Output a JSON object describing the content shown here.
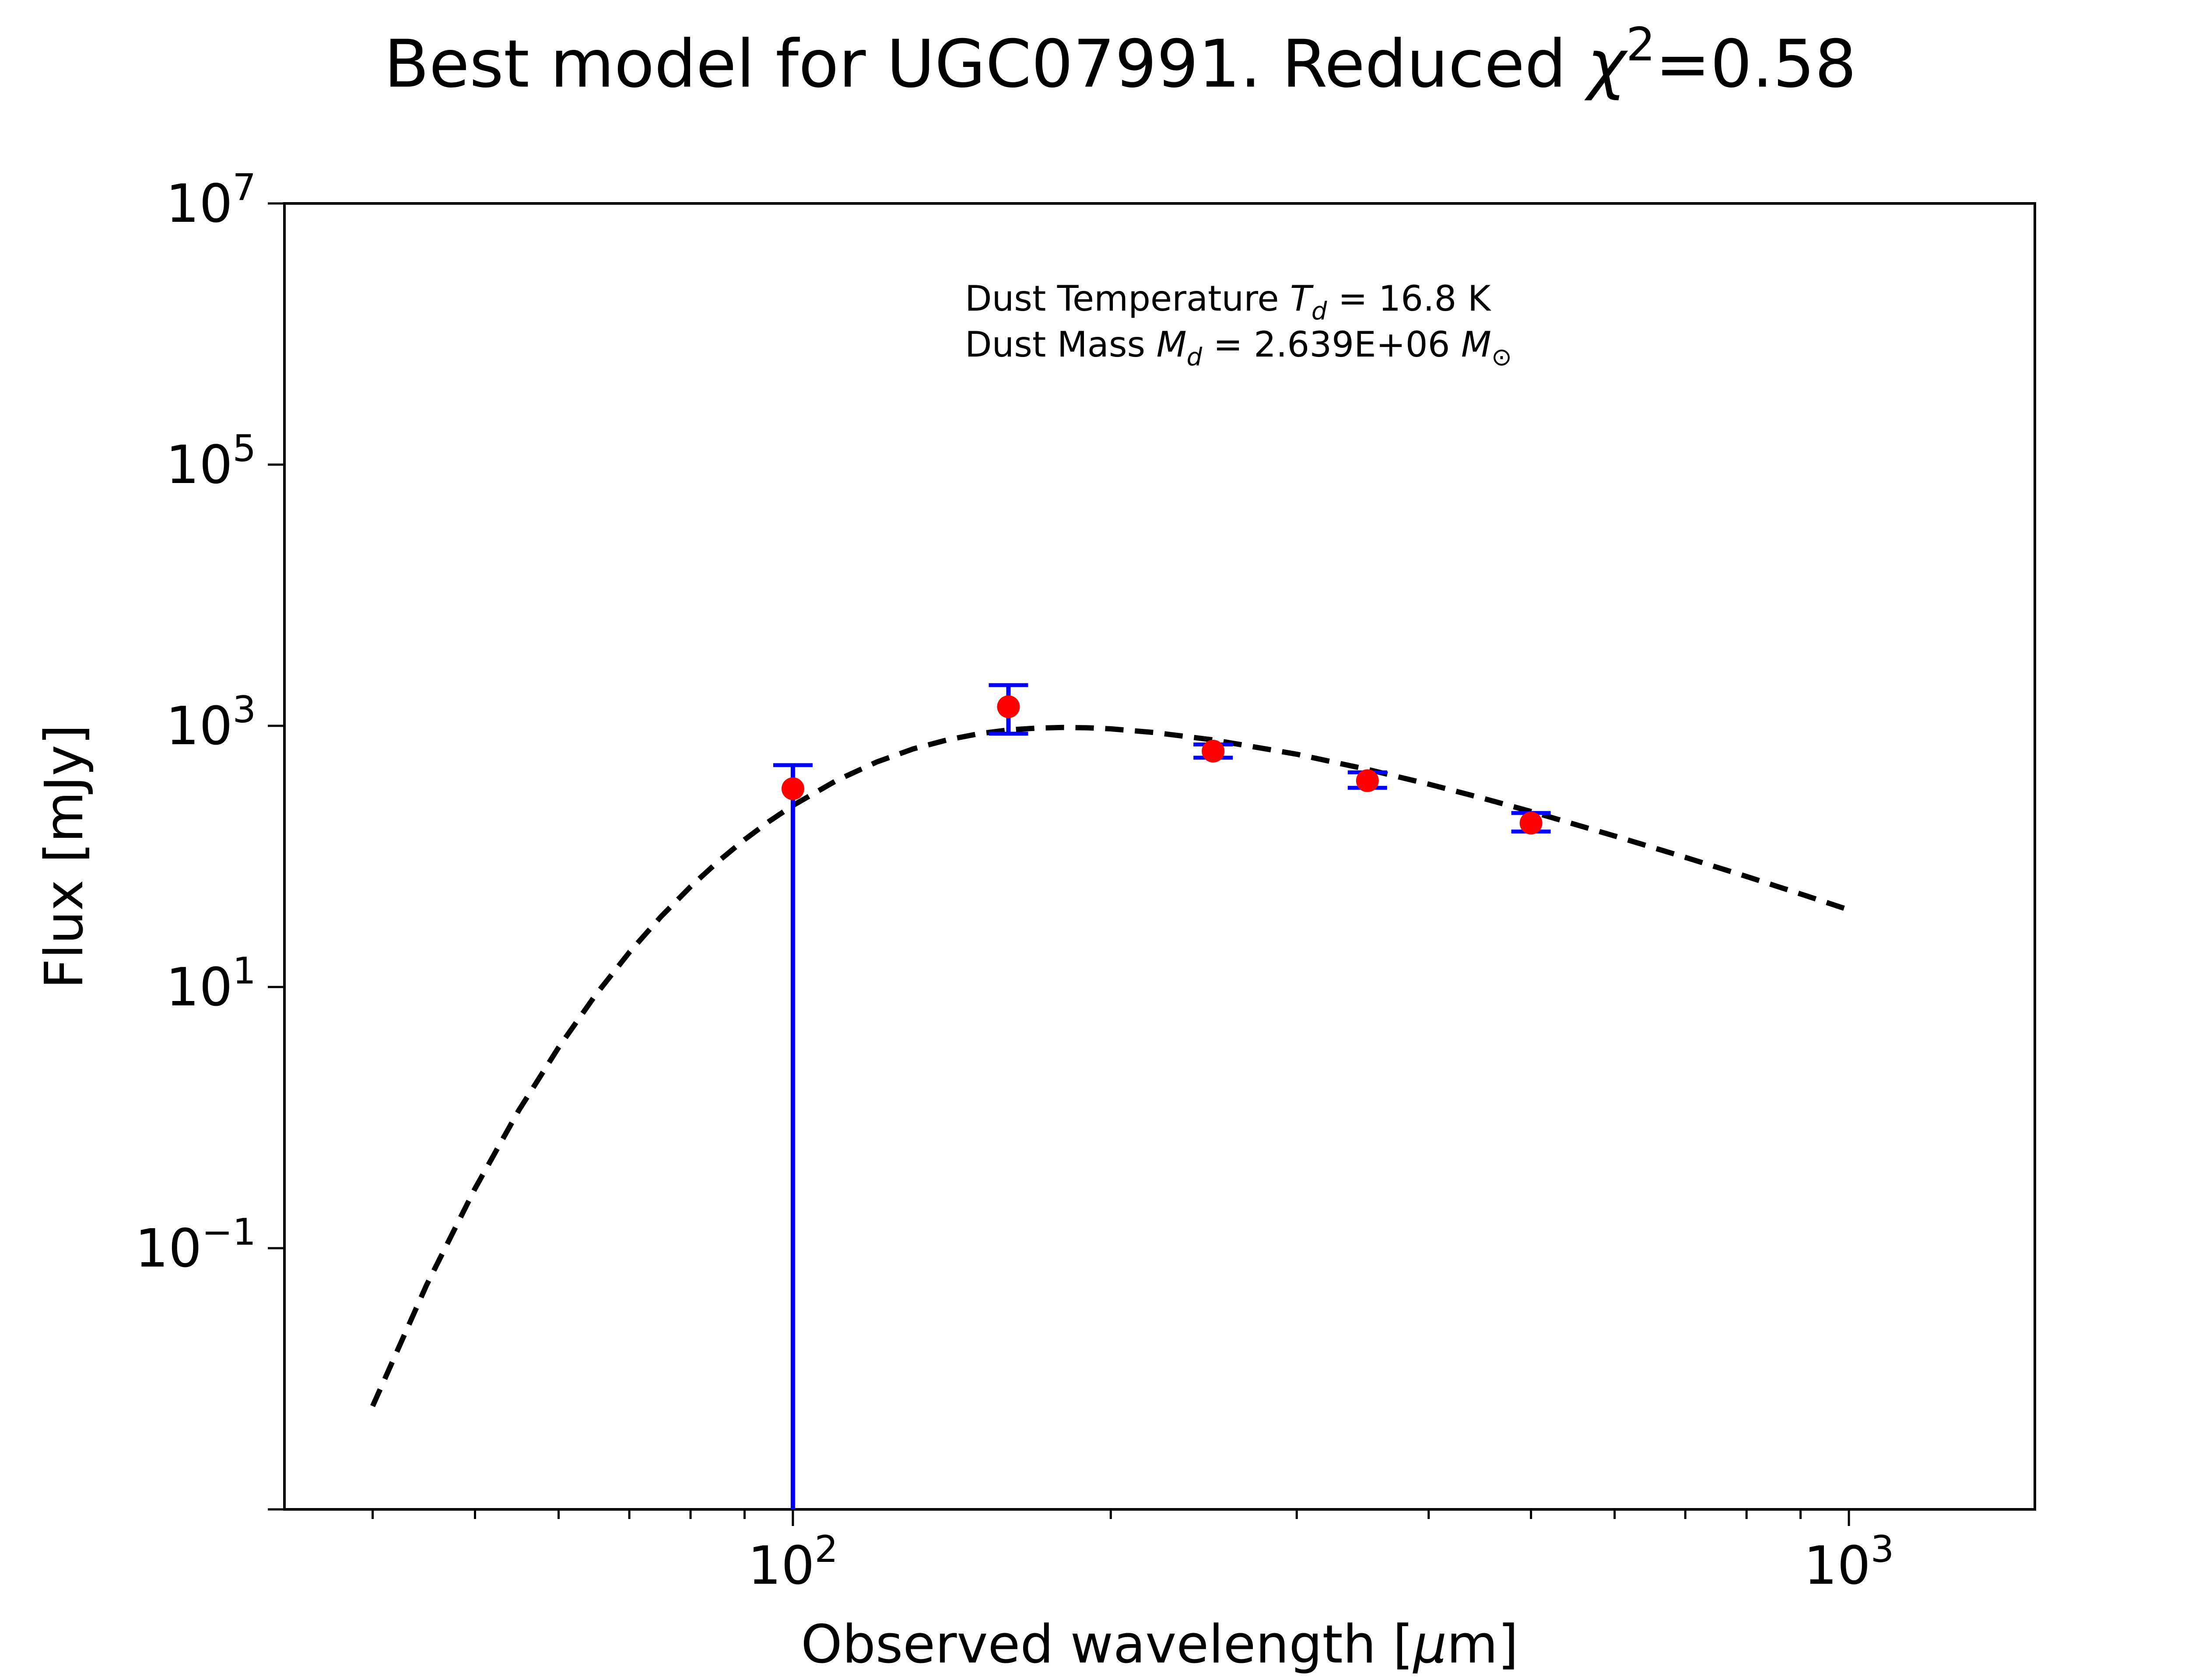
{
  "chart_data": {
    "type": "scatter",
    "title": {
      "prefix": "Best model for UGC07991. Reduced ",
      "chi": "χ",
      "chi_exponent": "2",
      "suffix": "=0.58"
    },
    "xlabel": {
      "main": "Observed wavelength [",
      "mu": "μ",
      "tail": "m]"
    },
    "ylabel": "Flux [mJy]",
    "x_scale": "log",
    "y_scale": "log",
    "xlim": [
      33,
      1500
    ],
    "ylim": [
      0.001,
      10000000
    ],
    "grid": false,
    "x_ticks": [
      {
        "value": 100,
        "base": "10",
        "exp": "2"
      },
      {
        "value": 1000,
        "base": "10",
        "exp": "3"
      }
    ],
    "y_ticks": [
      {
        "value": 10000000,
        "base": "10",
        "exp": "7"
      },
      {
        "value": 100000,
        "base": "10",
        "exp": "5"
      },
      {
        "value": 1000,
        "base": "10",
        "exp": "3"
      },
      {
        "value": 10,
        "base": "10",
        "exp": "1"
      },
      {
        "value": 0.1,
        "base": "10",
        "exp": "−1"
      },
      {
        "value": 0.001,
        "base": "",
        "exp": ""
      }
    ],
    "annotations": {
      "line1": {
        "text": "Dust Temperature ",
        "var": "T",
        "sub": "d",
        "value": " = 16.8 K"
      },
      "line2": {
        "text": "Dust Mass ",
        "var": "M",
        "sub": "d",
        "value": " = 2.639E+06 ",
        "unit": "M",
        "unit_sub": "⊙"
      }
    },
    "series": [
      {
        "kind": "observations",
        "color": "#ff0000",
        "errorbar_color": "#0000ff",
        "x": [
          100,
          160,
          250,
          350,
          500
        ],
        "y": [
          330,
          1400,
          640,
          380,
          180
        ],
        "y_low": [
          0.001,
          870,
          570,
          335,
          155
        ],
        "y_high": [
          500,
          2050,
          720,
          440,
          215
        ]
      },
      {
        "kind": "model",
        "color": "#000000",
        "linestyle": "dashed",
        "x": [
          40,
          45,
          50,
          55,
          60,
          65,
          70,
          75,
          80,
          85,
          90,
          95,
          100,
          110,
          120,
          130,
          140,
          150,
          160,
          170,
          180,
          190,
          200,
          220,
          250,
          300,
          350,
          400,
          450,
          500,
          600,
          700,
          800,
          900,
          1000
        ],
        "y": [
          0.00103,
          0.00873,
          0.0477,
          0.189,
          0.574,
          1.44,
          3.07,
          5.76,
          9.77,
          15.3,
          22.4,
          31.0,
          40.9,
          63.6,
          87.9,
          111,
          130,
          145,
          155,
          160,
          162,
          161,
          158,
          148,
          130,
          101,
          77.3,
          59.6,
          46.5,
          36.8,
          23.9,
          16.4,
          11.7,
          8.6,
          6.5
        ],
        "scale_factor": 6.0
      }
    ]
  }
}
